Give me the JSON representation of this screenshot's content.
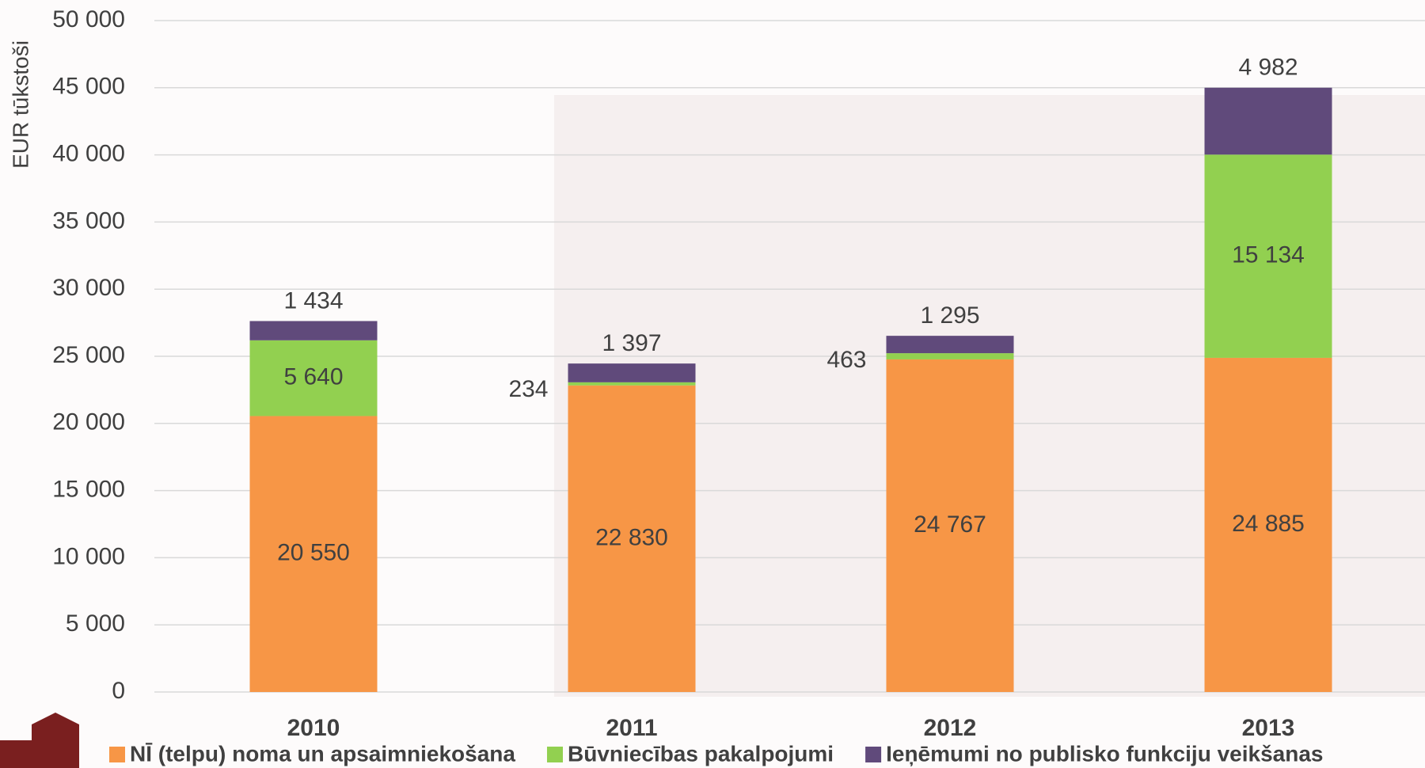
{
  "chart_data": {
    "type": "stacked_bar",
    "y_label": "EUR tūkstoši",
    "categories": [
      "2010",
      "2011",
      "2012",
      "2013"
    ],
    "series": [
      {
        "name": "NĪ (telpu) noma un apsaimniekošana",
        "color": "#f79646",
        "values": [
          20550,
          22830,
          24767,
          24885
        ],
        "value_labels": [
          "20 550",
          "22 830",
          "24 767",
          "24 885"
        ]
      },
      {
        "name": "Būvniecības pakalpojumi",
        "color": "#92d050",
        "values": [
          5640,
          234,
          463,
          15134
        ],
        "value_labels": [
          "5 640",
          "234",
          "463",
          "15 134"
        ]
      },
      {
        "name": "Ieņēmumi no publisko funkciju veikšanas",
        "color": "#604a7b",
        "values": [
          1434,
          1397,
          1295,
          4982
        ],
        "value_labels": [
          "1 434",
          "1 397",
          "1 295",
          "4 982"
        ]
      }
    ],
    "ylim": [
      0,
      50000
    ],
    "yticks": [
      0,
      {
        "value": 5000,
        "label": "5 000"
      },
      {
        "value": 10000,
        "label": "10 000"
      },
      {
        "value": 15000,
        "label": "15 000"
      },
      {
        "value": 20000,
        "label": "20 000"
      },
      {
        "value": 25000,
        "label": "25 000"
      },
      {
        "value": 30000,
        "label": "30 000"
      },
      {
        "value": 35000,
        "label": "35 000"
      },
      {
        "value": 40000,
        "label": "40 000"
      },
      {
        "value": 45000,
        "label": "45 000"
      },
      {
        "value": 50000,
        "label": "50 000"
      }
    ],
    "grid": true,
    "legend": "bottom"
  }
}
